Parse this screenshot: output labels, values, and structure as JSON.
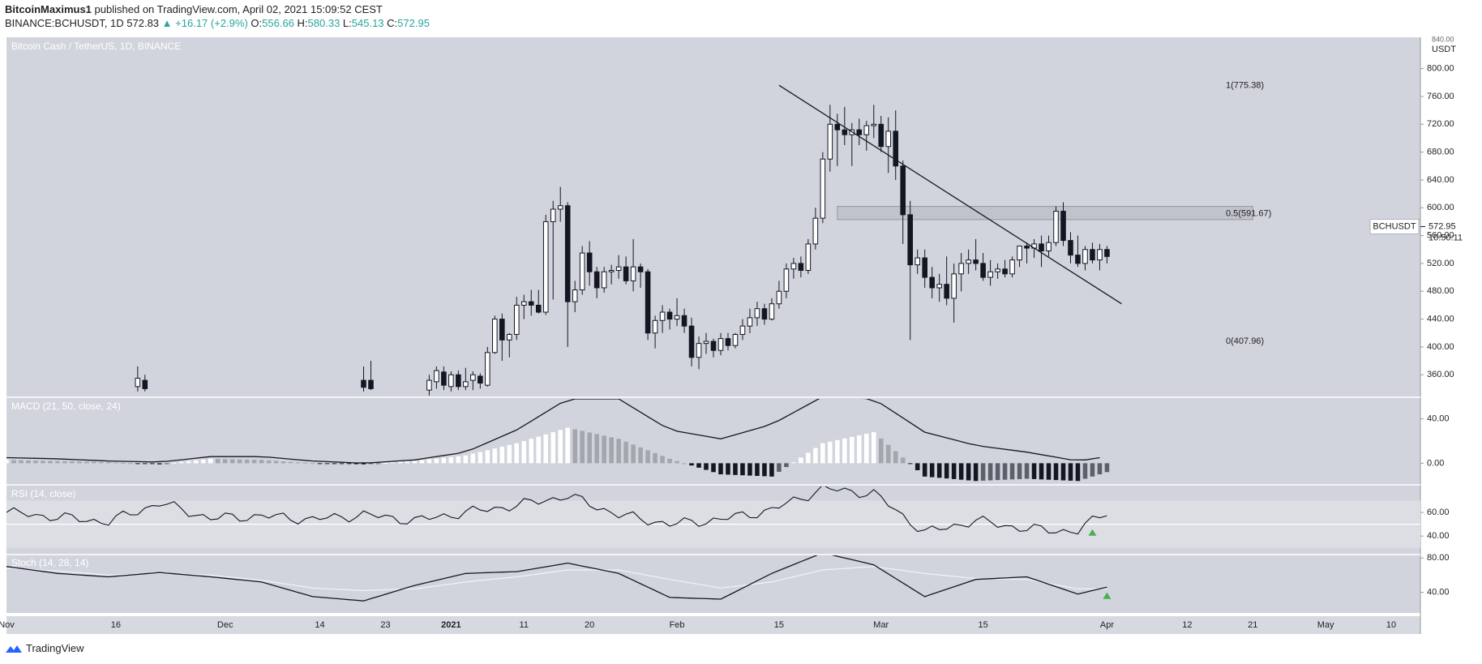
{
  "header": {
    "author": "BitcoinMaximus1",
    "published_text": "published on TradingView.com, April 02, 2021 15:09:52 CEST",
    "symbol": "BINANCE:BCHUSDT, 1D",
    "last": "572.83",
    "change": "+16.17 (+2.9%)",
    "o_label": "O:",
    "o": "556.66",
    "h_label": "H:",
    "h": "580.33",
    "l_label": "L:",
    "l": "545.13",
    "c_label": "C:",
    "c": "572.95"
  },
  "footer": {
    "brand": "TradingView"
  },
  "colors": {
    "bg": "#d1d4dc",
    "osc_band": "#dcdee4",
    "line": "#131722",
    "accent_green": "#4caf50"
  },
  "chart_data": [
    {
      "type": "candlestick",
      "title": "Bitcoin Cash / TetherUS, 1D, BINANCE",
      "currency": "USDT",
      "ylim": [
        330,
        845
      ],
      "yticks": [
        360,
        400,
        440,
        480,
        520,
        560,
        600,
        640,
        680,
        720,
        760,
        800
      ],
      "ytick_labels": [
        "360.00",
        "400.00",
        "440.00",
        "480.00",
        "520.00",
        "560.00",
        "600.00",
        "640.00",
        "680.00",
        "720.00",
        "760.00",
        "800.00"
      ],
      "top_tick_label": "840.00",
      "x_start": "2020-11-01",
      "xlim": [
        "2020-11-01",
        "2021-05-14"
      ],
      "xtick_dates": [
        "2020-11-01",
        "2020-11-16",
        "2020-12-01",
        "2020-12-14",
        "2020-12-23",
        "2021-01-01",
        "2021-01-11",
        "2021-01-20",
        "2021-02-01",
        "2021-02-15",
        "2021-03-01",
        "2021-03-15",
        "2021-04-01",
        "2021-04-12",
        "2021-04-21",
        "2021-05-01",
        "2021-05-10"
      ],
      "xtick_labels": [
        "Nov",
        "16",
        "Dec",
        "14",
        "23",
        "2021",
        "11",
        "20",
        "Feb",
        "15",
        "Mar",
        "15",
        "Apr",
        "12",
        "21",
        "May",
        "10"
      ],
      "price_badge": {
        "symbol": "BCHUSDT",
        "price": "572.95",
        "countdown": "10:50:11"
      },
      "fib": [
        {
          "label": "1(775.38)",
          "value": 775.38
        },
        {
          "label": "0.5(591.67)",
          "value": 591.67
        },
        {
          "label": "0(407.96)",
          "value": 407.96
        }
      ],
      "resistance_zone": {
        "from": "2021-02-23",
        "to": "2021-04-21",
        "low": 583,
        "high": 602
      },
      "trendline": {
        "x": [
          "2021-02-15",
          "2021-04-03"
        ],
        "y": [
          776,
          462
        ]
      },
      "candles": [
        {
          "date": "2020-11-19",
          "o": 343,
          "h": 372,
          "l": 336,
          "c": 355
        },
        {
          "date": "2020-11-20",
          "o": 352,
          "h": 360,
          "l": 336,
          "c": 340
        },
        {
          "date": "2020-12-20",
          "o": 352,
          "h": 372,
          "l": 336,
          "c": 342
        },
        {
          "date": "2020-12-21",
          "o": 352,
          "h": 380,
          "l": 338,
          "c": 340
        },
        {
          "date": "2020-12-29",
          "o": 338,
          "h": 360,
          "l": 330,
          "c": 352
        },
        {
          "date": "2020-12-30",
          "o": 350,
          "h": 372,
          "l": 340,
          "c": 366
        },
        {
          "date": "2020-12-31",
          "o": 364,
          "h": 372,
          "l": 338,
          "c": 345
        },
        {
          "date": "2021-01-01",
          "o": 343,
          "h": 365,
          "l": 336,
          "c": 360
        },
        {
          "date": "2021-01-02",
          "o": 360,
          "h": 366,
          "l": 338,
          "c": 343
        },
        {
          "date": "2021-01-03",
          "o": 343,
          "h": 370,
          "l": 338,
          "c": 350
        },
        {
          "date": "2021-01-04",
          "o": 352,
          "h": 365,
          "l": 338,
          "c": 360
        },
        {
          "date": "2021-01-05",
          "o": 358,
          "h": 362,
          "l": 340,
          "c": 348
        },
        {
          "date": "2021-01-06",
          "o": 345,
          "h": 400,
          "l": 343,
          "c": 392
        },
        {
          "date": "2021-01-07",
          "o": 392,
          "h": 445,
          "l": 390,
          "c": 440
        },
        {
          "date": "2021-01-08",
          "o": 440,
          "h": 448,
          "l": 380,
          "c": 410
        },
        {
          "date": "2021-01-09",
          "o": 410,
          "h": 420,
          "l": 385,
          "c": 418
        },
        {
          "date": "2021-01-10",
          "o": 418,
          "h": 472,
          "l": 410,
          "c": 460
        },
        {
          "date": "2021-01-11",
          "o": 460,
          "h": 475,
          "l": 440,
          "c": 465
        },
        {
          "date": "2021-01-12",
          "o": 465,
          "h": 482,
          "l": 445,
          "c": 460
        },
        {
          "date": "2021-01-13",
          "o": 460,
          "h": 482,
          "l": 448,
          "c": 450
        },
        {
          "date": "2021-01-14",
          "o": 450,
          "h": 590,
          "l": 446,
          "c": 580
        },
        {
          "date": "2021-01-15",
          "o": 580,
          "h": 610,
          "l": 468,
          "c": 598
        },
        {
          "date": "2021-01-16",
          "o": 598,
          "h": 630,
          "l": 580,
          "c": 603
        },
        {
          "date": "2021-01-17",
          "o": 603,
          "h": 608,
          "l": 400,
          "c": 465
        },
        {
          "date": "2021-01-18",
          "o": 465,
          "h": 495,
          "l": 450,
          "c": 482
        },
        {
          "date": "2021-01-19",
          "o": 482,
          "h": 545,
          "l": 475,
          "c": 535
        },
        {
          "date": "2021-01-20",
          "o": 535,
          "h": 552,
          "l": 488,
          "c": 508
        },
        {
          "date": "2021-01-21",
          "o": 508,
          "h": 515,
          "l": 470,
          "c": 485
        },
        {
          "date": "2021-01-22",
          "o": 485,
          "h": 515,
          "l": 478,
          "c": 508
        },
        {
          "date": "2021-01-23",
          "o": 508,
          "h": 518,
          "l": 490,
          "c": 510
        },
        {
          "date": "2021-01-24",
          "o": 510,
          "h": 532,
          "l": 498,
          "c": 515
        },
        {
          "date": "2021-01-25",
          "o": 515,
          "h": 530,
          "l": 490,
          "c": 495
        },
        {
          "date": "2021-01-26",
          "o": 495,
          "h": 555,
          "l": 480,
          "c": 515
        },
        {
          "date": "2021-01-27",
          "o": 515,
          "h": 520,
          "l": 485,
          "c": 508
        },
        {
          "date": "2021-01-28",
          "o": 508,
          "h": 512,
          "l": 410,
          "c": 420
        },
        {
          "date": "2021-01-29",
          "o": 420,
          "h": 445,
          "l": 398,
          "c": 438
        },
        {
          "date": "2021-01-30",
          "o": 438,
          "h": 460,
          "l": 420,
          "c": 450
        },
        {
          "date": "2021-01-31",
          "o": 450,
          "h": 455,
          "l": 425,
          "c": 440
        },
        {
          "date": "2021-02-01",
          "o": 440,
          "h": 470,
          "l": 430,
          "c": 445
        },
        {
          "date": "2021-02-02",
          "o": 445,
          "h": 455,
          "l": 420,
          "c": 430
        },
        {
          "date": "2021-02-03",
          "o": 430,
          "h": 442,
          "l": 372,
          "c": 385
        },
        {
          "date": "2021-02-04",
          "o": 385,
          "h": 415,
          "l": 368,
          "c": 405
        },
        {
          "date": "2021-02-05",
          "o": 405,
          "h": 420,
          "l": 390,
          "c": 408
        },
        {
          "date": "2021-02-06",
          "o": 408,
          "h": 412,
          "l": 385,
          "c": 395
        },
        {
          "date": "2021-02-07",
          "o": 395,
          "h": 420,
          "l": 388,
          "c": 412
        },
        {
          "date": "2021-02-08",
          "o": 412,
          "h": 420,
          "l": 395,
          "c": 402
        },
        {
          "date": "2021-02-09",
          "o": 402,
          "h": 420,
          "l": 398,
          "c": 418
        },
        {
          "date": "2021-02-10",
          "o": 418,
          "h": 440,
          "l": 410,
          "c": 430
        },
        {
          "date": "2021-02-11",
          "o": 430,
          "h": 455,
          "l": 420,
          "c": 442
        },
        {
          "date": "2021-02-12",
          "o": 442,
          "h": 465,
          "l": 430,
          "c": 455
        },
        {
          "date": "2021-02-13",
          "o": 455,
          "h": 462,
          "l": 432,
          "c": 440
        },
        {
          "date": "2021-02-14",
          "o": 440,
          "h": 470,
          "l": 438,
          "c": 462
        },
        {
          "date": "2021-02-15",
          "o": 462,
          "h": 495,
          "l": 455,
          "c": 480
        },
        {
          "date": "2021-02-16",
          "o": 480,
          "h": 520,
          "l": 470,
          "c": 512
        },
        {
          "date": "2021-02-17",
          "o": 512,
          "h": 528,
          "l": 498,
          "c": 520
        },
        {
          "date": "2021-02-18",
          "o": 520,
          "h": 530,
          "l": 500,
          "c": 510
        },
        {
          "date": "2021-02-19",
          "o": 510,
          "h": 555,
          "l": 505,
          "c": 548
        },
        {
          "date": "2021-02-20",
          "o": 548,
          "h": 600,
          "l": 540,
          "c": 585
        },
        {
          "date": "2021-02-21",
          "o": 585,
          "h": 680,
          "l": 578,
          "c": 670
        },
        {
          "date": "2021-02-22",
          "o": 670,
          "h": 748,
          "l": 652,
          "c": 720
        },
        {
          "date": "2021-02-23",
          "o": 720,
          "h": 735,
          "l": 660,
          "c": 712
        },
        {
          "date": "2021-02-24",
          "o": 712,
          "h": 745,
          "l": 690,
          "c": 705
        },
        {
          "date": "2021-02-25",
          "o": 705,
          "h": 722,
          "l": 660,
          "c": 712
        },
        {
          "date": "2021-02-26",
          "o": 712,
          "h": 728,
          "l": 690,
          "c": 705
        },
        {
          "date": "2021-02-27",
          "o": 705,
          "h": 725,
          "l": 682,
          "c": 718
        },
        {
          "date": "2021-02-28",
          "o": 718,
          "h": 748,
          "l": 700,
          "c": 720
        },
        {
          "date": "2021-03-01",
          "o": 720,
          "h": 732,
          "l": 680,
          "c": 688
        },
        {
          "date": "2021-03-02",
          "o": 688,
          "h": 730,
          "l": 650,
          "c": 710
        },
        {
          "date": "2021-03-03",
          "o": 710,
          "h": 740,
          "l": 640,
          "c": 660
        },
        {
          "date": "2021-03-04",
          "o": 660,
          "h": 668,
          "l": 548,
          "c": 590
        },
        {
          "date": "2021-03-05",
          "o": 590,
          "h": 610,
          "l": 410,
          "c": 518
        },
        {
          "date": "2021-03-06",
          "o": 518,
          "h": 540,
          "l": 505,
          "c": 528
        },
        {
          "date": "2021-03-07",
          "o": 528,
          "h": 540,
          "l": 485,
          "c": 500
        },
        {
          "date": "2021-03-08",
          "o": 500,
          "h": 515,
          "l": 470,
          "c": 485
        },
        {
          "date": "2021-03-09",
          "o": 485,
          "h": 505,
          "l": 465,
          "c": 490
        },
        {
          "date": "2021-03-10",
          "o": 490,
          "h": 530,
          "l": 460,
          "c": 470
        },
        {
          "date": "2021-03-11",
          "o": 470,
          "h": 520,
          "l": 435,
          "c": 505
        },
        {
          "date": "2021-03-12",
          "o": 505,
          "h": 535,
          "l": 480,
          "c": 520
        },
        {
          "date": "2021-03-13",
          "o": 520,
          "h": 540,
          "l": 505,
          "c": 525
        },
        {
          "date": "2021-03-14",
          "o": 525,
          "h": 555,
          "l": 510,
          "c": 520
        },
        {
          "date": "2021-03-15",
          "o": 520,
          "h": 535,
          "l": 495,
          "c": 500
        },
        {
          "date": "2021-03-16",
          "o": 500,
          "h": 525,
          "l": 488,
          "c": 508
        },
        {
          "date": "2021-03-17",
          "o": 508,
          "h": 520,
          "l": 498,
          "c": 512
        },
        {
          "date": "2021-03-18",
          "o": 512,
          "h": 525,
          "l": 500,
          "c": 505
        },
        {
          "date": "2021-03-19",
          "o": 505,
          "h": 530,
          "l": 500,
          "c": 525
        },
        {
          "date": "2021-03-20",
          "o": 525,
          "h": 545,
          "l": 515,
          "c": 545
        },
        {
          "date": "2021-03-21",
          "o": 545,
          "h": 550,
          "l": 520,
          "c": 542
        },
        {
          "date": "2021-03-22",
          "o": 542,
          "h": 555,
          "l": 528,
          "c": 548
        },
        {
          "date": "2021-03-23",
          "o": 548,
          "h": 560,
          "l": 515,
          "c": 538
        },
        {
          "date": "2021-03-24",
          "o": 538,
          "h": 560,
          "l": 530,
          "c": 550
        },
        {
          "date": "2021-03-25",
          "o": 550,
          "h": 602,
          "l": 545,
          "c": 595
        },
        {
          "date": "2021-03-26",
          "o": 595,
          "h": 608,
          "l": 545,
          "c": 553
        },
        {
          "date": "2021-03-27",
          "o": 553,
          "h": 565,
          "l": 520,
          "c": 532
        },
        {
          "date": "2021-03-28",
          "o": 532,
          "h": 560,
          "l": 515,
          "c": 520
        },
        {
          "date": "2021-03-29",
          "o": 520,
          "h": 545,
          "l": 510,
          "c": 540
        },
        {
          "date": "2021-03-30",
          "o": 540,
          "h": 550,
          "l": 520,
          "c": 525
        },
        {
          "date": "2021-03-31",
          "o": 525,
          "h": 548,
          "l": 510,
          "c": 540
        },
        {
          "date": "2021-04-01",
          "o": 540,
          "h": 545,
          "l": 520,
          "c": 530
        }
      ]
    },
    {
      "type": "macd",
      "title": "MACD (21, 50, close, 24)",
      "ylim": [
        -18,
        58
      ],
      "yticks": [
        0,
        40
      ],
      "ytick_labels": [
        "0.00",
        "40.00"
      ],
      "note": "Histogram values in price units, sampled weekly from the start date; line is the MACD line.",
      "sample_dates": [
        "2020-11-01",
        "2020-11-08",
        "2020-11-15",
        "2020-11-22",
        "2020-11-29",
        "2020-12-06",
        "2020-12-13",
        "2020-12-20",
        "2020-12-27",
        "2021-01-03",
        "2021-01-10",
        "2021-01-17",
        "2021-01-24",
        "2021-01-31",
        "2021-02-07",
        "2021-02-14",
        "2021-02-21",
        "2021-02-28",
        "2021-03-07",
        "2021-03-14",
        "2021-03-21",
        "2021-03-28",
        "2021-04-01"
      ],
      "macd_line": [
        5,
        4,
        2,
        1,
        6,
        6,
        2,
        0,
        3,
        10,
        30,
        58,
        58,
        30,
        22,
        35,
        60,
        58,
        28,
        16,
        10,
        2,
        6
      ],
      "histogram": [
        3,
        2,
        1,
        -1,
        4,
        3,
        0,
        -1,
        2,
        7,
        18,
        32,
        22,
        4,
        -10,
        -12,
        18,
        28,
        -12,
        -16,
        -14,
        -16,
        -8
      ]
    },
    {
      "type": "rsi",
      "title": "RSI (14, close)",
      "ylim": [
        25,
        82
      ],
      "yticks": [
        40,
        60
      ],
      "ytick_labels": [
        "40.00",
        "60.00"
      ],
      "band": [
        30,
        70
      ],
      "midline": 50,
      "sample_dates": [
        "2020-11-01",
        "2020-11-08",
        "2020-11-15",
        "2020-11-22",
        "2020-11-29",
        "2020-12-06",
        "2020-12-13",
        "2020-12-20",
        "2020-12-27",
        "2021-01-03",
        "2021-01-10",
        "2021-01-17",
        "2021-01-24",
        "2021-01-31",
        "2021-02-07",
        "2021-02-14",
        "2021-02-21",
        "2021-02-28",
        "2021-03-07",
        "2021-03-14",
        "2021-03-21",
        "2021-03-28",
        "2021-04-01"
      ],
      "values": [
        60,
        56,
        52,
        68,
        55,
        57,
        54,
        58,
        53,
        60,
        66,
        74,
        58,
        50,
        54,
        62,
        80,
        76,
        43,
        53,
        46,
        44,
        61
      ],
      "signal_marker": {
        "date": "2021-03-30",
        "value": 43
      }
    },
    {
      "type": "stoch",
      "title": "Stoch (14, 28, 14)",
      "ylim": [
        16,
        83
      ],
      "yticks": [
        40,
        80
      ],
      "ytick_labels": [
        "40.00",
        "80.00"
      ],
      "sample_dates": [
        "2020-11-01",
        "2020-11-08",
        "2020-11-15",
        "2020-11-22",
        "2020-11-29",
        "2020-12-06",
        "2020-12-13",
        "2020-12-20",
        "2020-12-27",
        "2021-01-03",
        "2021-01-10",
        "2021-01-17",
        "2021-01-24",
        "2021-01-31",
        "2021-02-07",
        "2021-02-14",
        "2021-02-21",
        "2021-02-28",
        "2021-03-07",
        "2021-03-14",
        "2021-03-21",
        "2021-03-28",
        "2021-04-01"
      ],
      "k_line": [
        70,
        62,
        58,
        63,
        58,
        52,
        35,
        30,
        48,
        62,
        64,
        74,
        62,
        34,
        32,
        62,
        86,
        72,
        35,
        55,
        58,
        38,
        46
      ],
      "d_line": [
        68,
        65,
        60,
        62,
        60,
        54,
        45,
        42,
        44,
        52,
        58,
        66,
        66,
        55,
        45,
        52,
        66,
        70,
        62,
        56,
        55,
        44,
        44
      ],
      "signal_marker": {
        "date": "2021-04-01",
        "value": 36
      }
    }
  ]
}
